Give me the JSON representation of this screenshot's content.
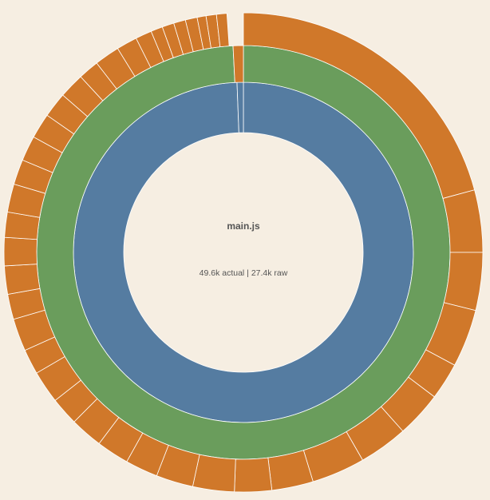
{
  "chart_data": {
    "type": "sunburst",
    "title": "main.js",
    "subtitle": "49.6k actual | 27.4k raw",
    "rings": [
      {
        "values": [
          99.4,
          0.6
        ],
        "colors": [
          "#557ca1",
          "#557ca1"
        ]
      },
      {
        "values": [
          99.2,
          0.8
        ],
        "colors": [
          "#6a9d5c",
          "#d0782a"
        ]
      },
      {
        "values": [
          20.8,
          4.2,
          3.9,
          3.9,
          2.5,
          3.1,
          3.3,
          3.6,
          2.8,
          2.5,
          2.8,
          2.5,
          2.2,
          2.2,
          2.2,
          1.9,
          2.2,
          1.7,
          2.2,
          1.7,
          1.9,
          1.9,
          1.7,
          1.9,
          1.7,
          1.7,
          1.7,
          1.7,
          1.7,
          1.4,
          1.7,
          1.4,
          1.1,
          0.8,
          0.8,
          0.8,
          0.8,
          0.6,
          0.7,
          0.7
        ],
        "color": "#d0782a"
      }
    ]
  }
}
